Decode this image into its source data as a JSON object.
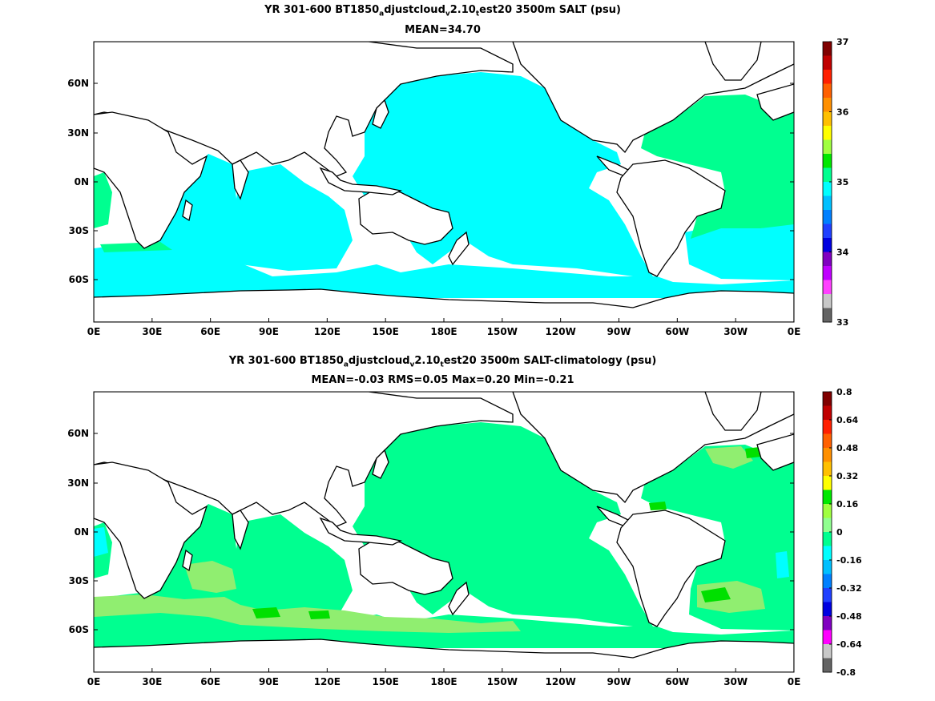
{
  "panels": [
    {
      "title_parts": [
        {
          "t": "YR 301-600 BT1850",
          "s": false
        },
        {
          "t": "a",
          "s": true
        },
        {
          "t": "djustcloud",
          "s": false
        },
        {
          "t": "v",
          "s": true
        },
        {
          "t": "2.10",
          "s": false
        },
        {
          "t": "t",
          "s": true
        },
        {
          "t": "est20 3500m SALT (psu)",
          "s": false
        }
      ],
      "stats": "MEAN=34.70",
      "x_ticks": [
        "0E",
        "30E",
        "60E",
        "90E",
        "120E",
        "150E",
        "180E",
        "150W",
        "120W",
        "90W",
        "60W",
        "30W",
        "0E"
      ],
      "y_ticks": [
        "60N",
        "30N",
        "0N",
        "30S",
        "60S"
      ],
      "colorbar": {
        "labels": [
          "37",
          "36",
          "35",
          "34",
          "33"
        ],
        "colors": [
          "#800000",
          "#c00000",
          "#ff2000",
          "#ff6000",
          "#ff9000",
          "#ffc000",
          "#ffff00",
          "#a0ff40",
          "#00e800",
          "#00ff90",
          "#00ffff",
          "#00c0ff",
          "#0080ff",
          "#2040ff",
          "#0000e0",
          "#8000c0",
          "#c000ff",
          "#ff40ff",
          "#c8c8c8",
          "#646464"
        ]
      },
      "map_colors": {
        "base": "#00ffff",
        "upper_atlantic": "#00ff90",
        "land": "#ffffff",
        "coast": "#000000"
      }
    },
    {
      "title_parts": [
        {
          "t": "YR 301-600 BT1850",
          "s": false
        },
        {
          "t": "a",
          "s": true
        },
        {
          "t": "djustcloud",
          "s": false
        },
        {
          "t": "v",
          "s": true
        },
        {
          "t": "2.10",
          "s": false
        },
        {
          "t": "t",
          "s": true
        },
        {
          "t": "est20 3500m SALT-climatology (psu)",
          "s": false
        }
      ],
      "stats": "MEAN=-0.03   RMS=0.05   Max=0.20   Min=-0.21",
      "x_ticks": [
        "0E",
        "30E",
        "60E",
        "90E",
        "120E",
        "150E",
        "180E",
        "150W",
        "120W",
        "90W",
        "60W",
        "30W",
        "0E"
      ],
      "y_ticks": [
        "60N",
        "30N",
        "0N",
        "30S",
        "60S"
      ],
      "colorbar": {
        "labels": [
          "0.8",
          "0.64",
          "0.48",
          "0.32",
          "0.16",
          "0",
          "-0.16",
          "-0.32",
          "-0.48",
          "-0.64",
          "-0.8"
        ],
        "colors": [
          "#800000",
          "#c00000",
          "#ff2000",
          "#ff6000",
          "#ff9000",
          "#ffc000",
          "#ffff00",
          "#00e800",
          "#a0ff40",
          "#90ff90",
          "#00ff90",
          "#00ffff",
          "#00c0ff",
          "#0080ff",
          "#2040ff",
          "#0000e0",
          "#8000c0",
          "#ff00ff",
          "#c8c8c8",
          "#646464"
        ]
      },
      "map_colors": {
        "base": "#00ff90",
        "positive": "#90ee70",
        "strong_positive": "#00e000",
        "negative": "#00ffff",
        "land": "#ffffff",
        "coast": "#000000"
      }
    }
  ]
}
